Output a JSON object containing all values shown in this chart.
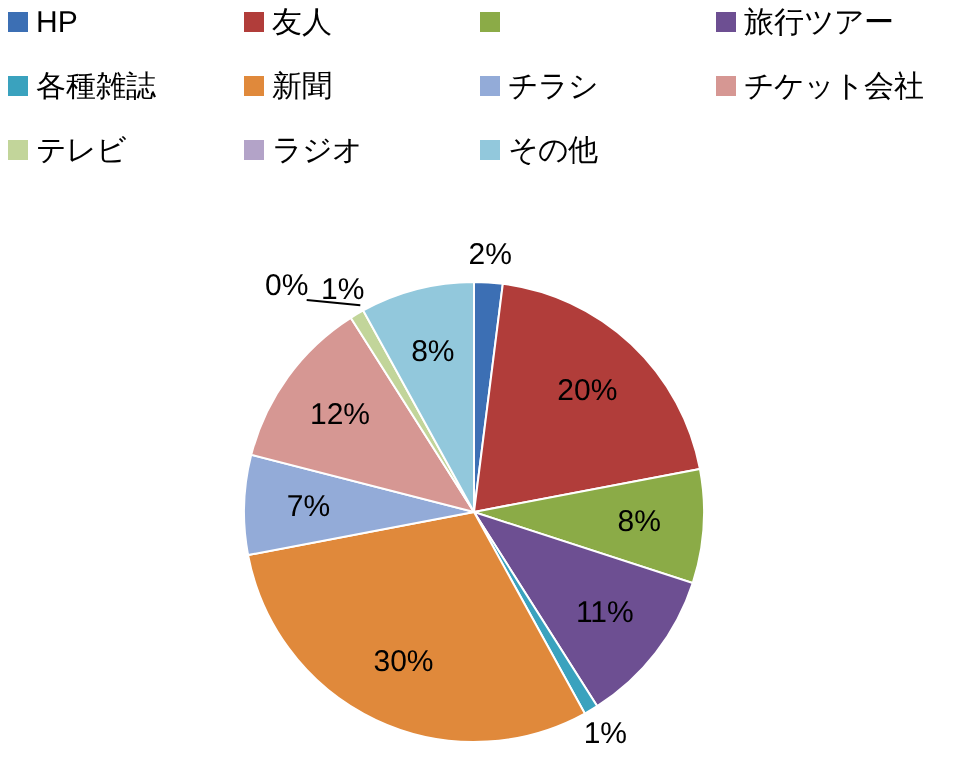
{
  "chart_data": {
    "type": "pie",
    "categories": [
      "HP",
      "友人",
      null,
      "旅行ツアー",
      "各種雑誌",
      "新聞",
      "チラシ",
      "チケット会社",
      "テレビ",
      "ラジオ",
      "その他"
    ],
    "values": [
      2,
      20,
      8,
      11,
      1,
      30,
      7,
      12,
      1,
      0,
      8
    ],
    "colors": [
      "#3c6fb4",
      "#b13d3a",
      "#8bab47",
      "#6d4f92",
      "#3aa2be",
      "#e0893b",
      "#93abd8",
      "#d69793",
      "#c2d59a",
      "#b3a3c8",
      "#92c8dc"
    ],
    "value_labels": [
      "2%",
      "20%",
      "8%",
      "11%",
      "1%",
      "30%",
      "7%",
      "12%",
      "1%",
      "0%",
      "8%"
    ],
    "legend": "top"
  }
}
